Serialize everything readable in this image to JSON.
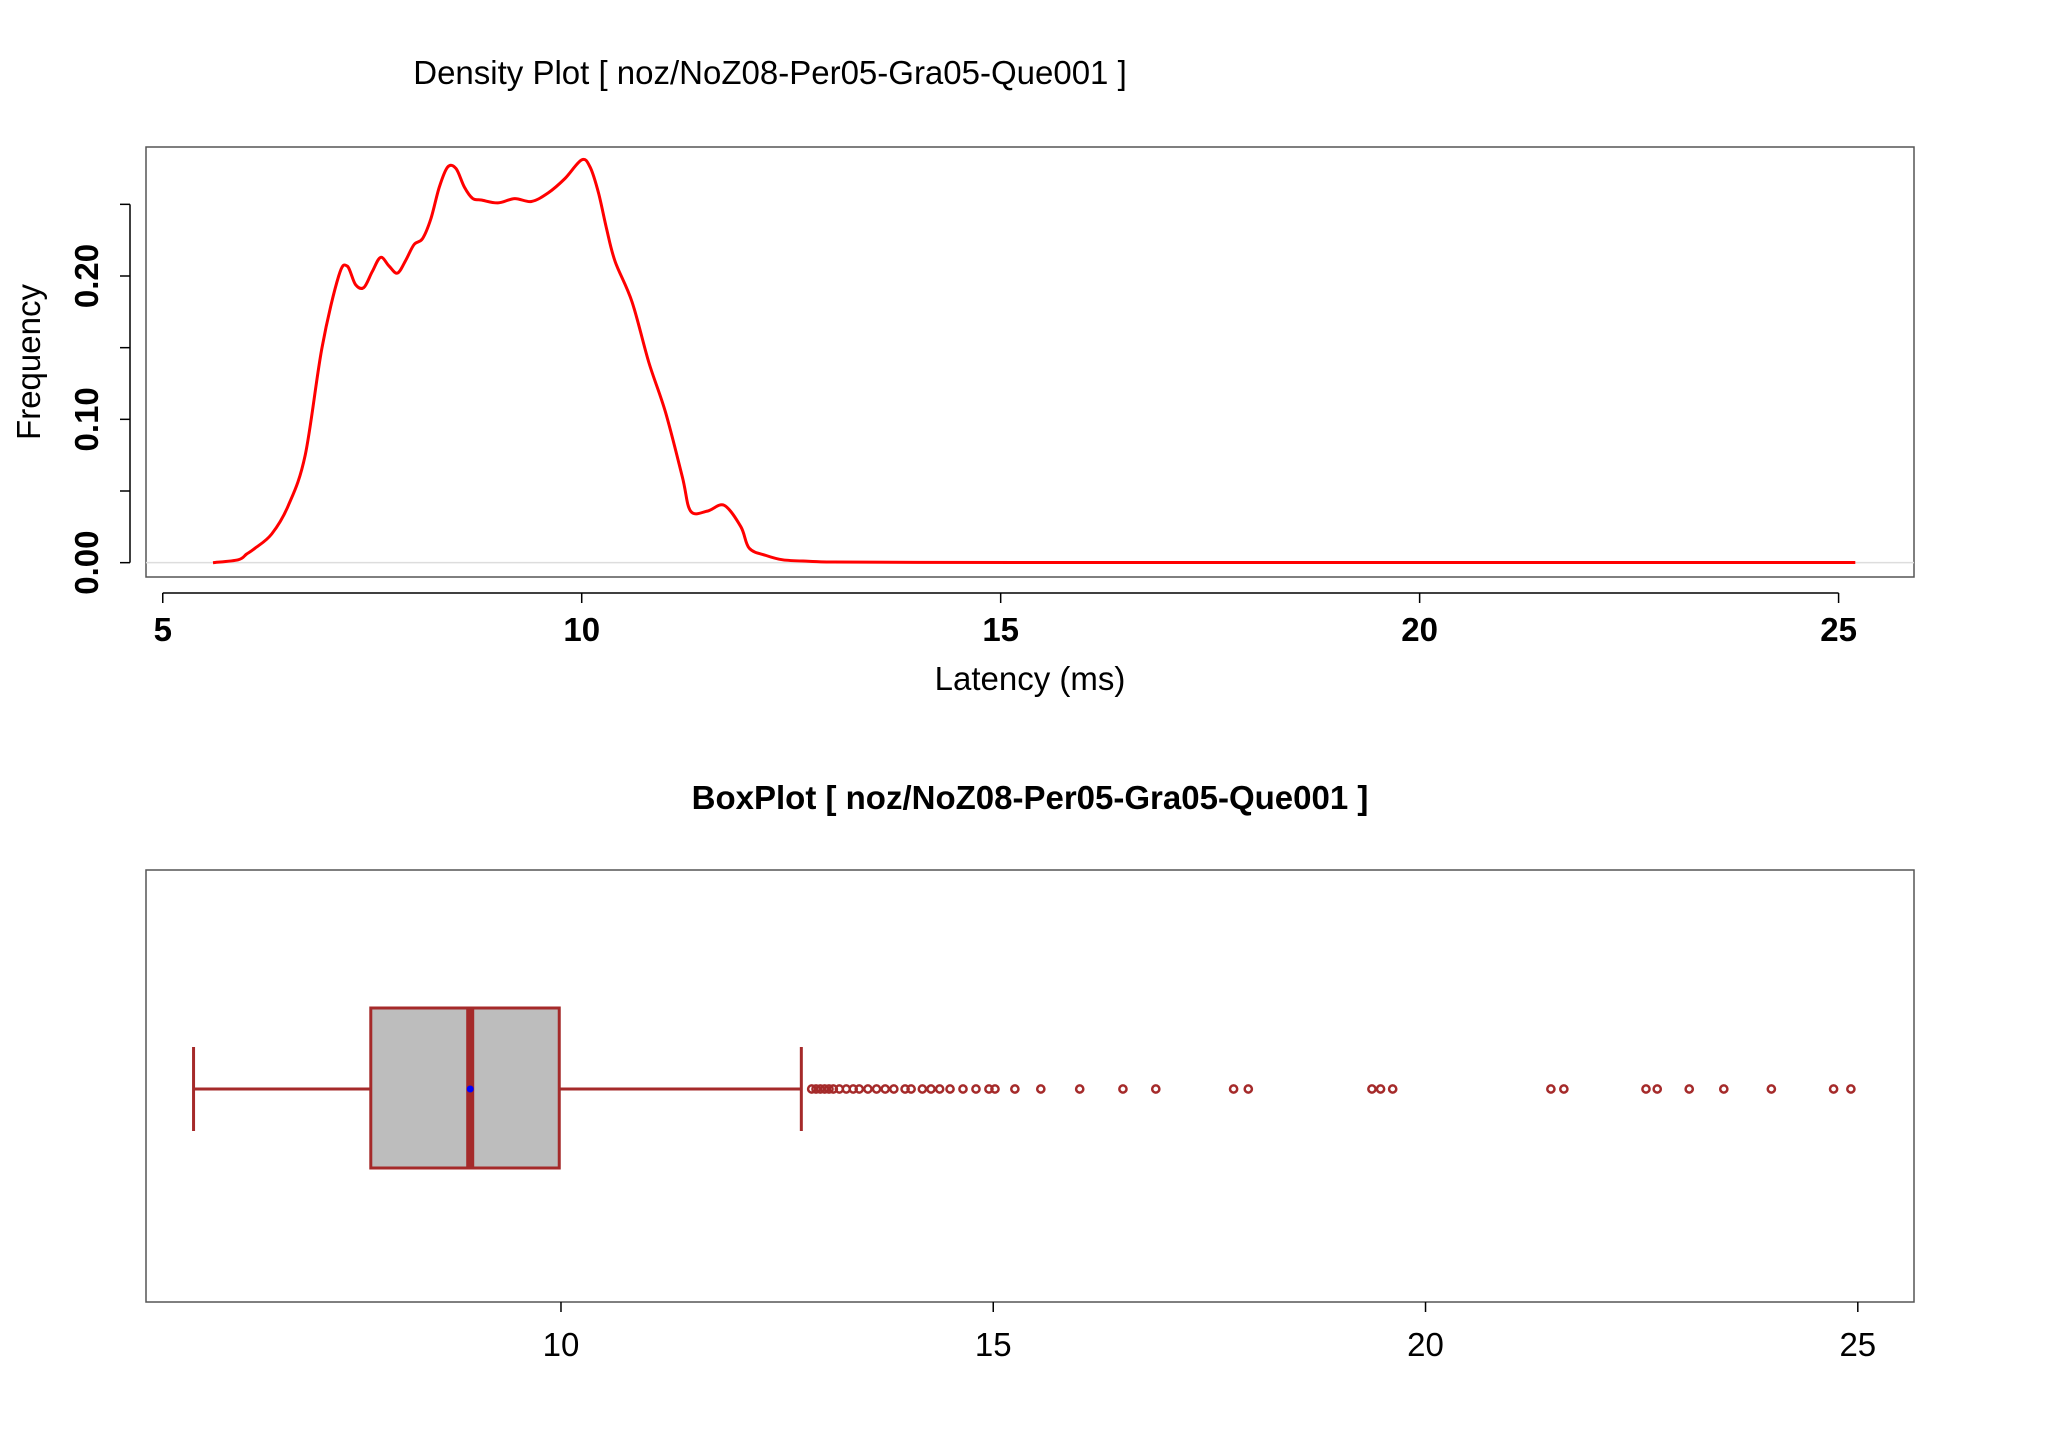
{
  "chart_data": [
    {
      "type": "area",
      "title": "Density Plot [ noz/NoZ08-Per05-Gra05-Que001 ]",
      "xlabel": "Latency (ms)",
      "ylabel": "Frequency",
      "xlim": [
        4.8,
        25.9
      ],
      "ylim": [
        -0.01,
        0.29
      ],
      "x_ticks": [
        5,
        10,
        15,
        20,
        25
      ],
      "x_tick_labels": [
        "5",
        "10",
        "15",
        "20",
        "25"
      ],
      "y_ticks": [
        0.0,
        0.05,
        0.1,
        0.15,
        0.2,
        0.25
      ],
      "y_tick_labels": [
        "0.00",
        "",
        "0.10",
        "",
        "0.20",
        ""
      ],
      "grid": false,
      "series": [
        {
          "color": "#ff0000",
          "x": [
            5.6,
            5.9,
            6.0,
            6.1,
            6.3,
            6.5,
            6.7,
            6.9,
            7.1,
            7.2,
            7.3,
            7.4,
            7.5,
            7.6,
            7.7,
            7.8,
            7.9,
            8.0,
            8.1,
            8.2,
            8.3,
            8.4,
            8.5,
            8.6,
            8.7,
            8.8,
            9.0,
            9.2,
            9.4,
            9.6,
            9.8,
            10.0,
            10.1,
            10.2,
            10.3,
            10.4,
            10.6,
            10.8,
            11.0,
            11.2,
            11.3,
            11.5,
            11.7,
            11.9,
            12.0,
            12.2,
            12.4,
            12.7,
            13.0,
            14.0,
            16.0,
            18.0,
            20.0,
            22.0,
            24.0,
            25.2
          ],
          "y": [
            0.0,
            0.002,
            0.006,
            0.01,
            0.02,
            0.04,
            0.075,
            0.15,
            0.2,
            0.207,
            0.194,
            0.192,
            0.203,
            0.213,
            0.207,
            0.202,
            0.211,
            0.222,
            0.226,
            0.24,
            0.262,
            0.276,
            0.275,
            0.262,
            0.254,
            0.253,
            0.251,
            0.254,
            0.252,
            0.258,
            0.268,
            0.281,
            0.276,
            0.258,
            0.232,
            0.21,
            0.182,
            0.14,
            0.105,
            0.06,
            0.036,
            0.036,
            0.04,
            0.025,
            0.01,
            0.005,
            0.002,
            0.001,
            0.0005,
            0.0002,
            0.0001,
            0.0001,
            0.0001,
            0.0001,
            0.0001,
            0.0001
          ]
        }
      ]
    },
    {
      "type": "box",
      "title": "BoxPlot [ noz/NoZ08-Per05-Gra05-Que001 ]",
      "xlim": [
        5.2,
        25.65
      ],
      "x_ticks": [
        10,
        15,
        20,
        25
      ],
      "x_tick_labels": [
        "10",
        "15",
        "20",
        "25"
      ],
      "grid": false,
      "box_color": "#bdbdbd",
      "line_color": "#a52a2a",
      "mean_color": "#0000ff",
      "whisker_low": 5.75,
      "q1": 7.8,
      "median": 8.95,
      "q3": 9.98,
      "whisker_high": 12.78,
      "mean": 8.95,
      "outliers": [
        12.9,
        12.95,
        13.0,
        13.05,
        13.1,
        13.15,
        13.22,
        13.3,
        13.38,
        13.45,
        13.55,
        13.65,
        13.75,
        13.85,
        13.98,
        14.05,
        14.18,
        14.28,
        14.38,
        14.5,
        14.65,
        14.8,
        14.95,
        15.02,
        15.25,
        15.55,
        16.0,
        16.5,
        16.88,
        17.78,
        17.95,
        19.38,
        19.48,
        19.62,
        21.45,
        21.6,
        22.55,
        22.68,
        23.05,
        23.45,
        24.0,
        24.72,
        24.92
      ]
    }
  ]
}
